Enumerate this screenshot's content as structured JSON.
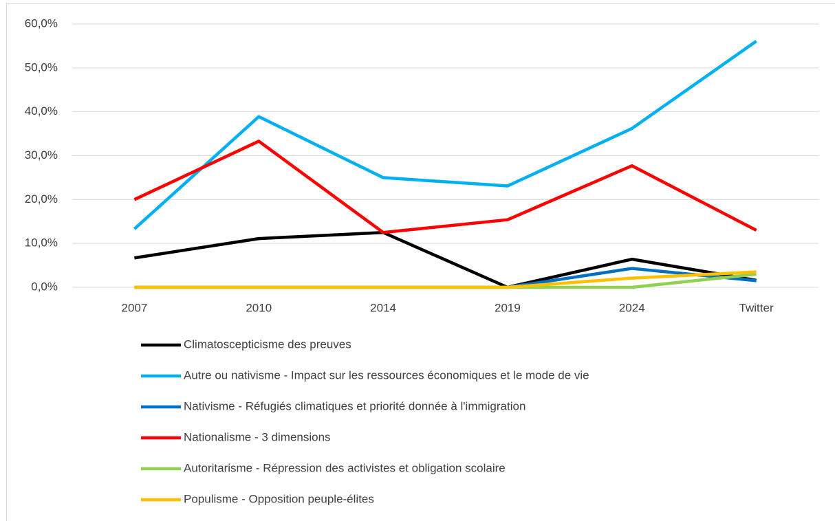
{
  "chart_data": {
    "type": "line",
    "categories": [
      "2007",
      "2010",
      "2014",
      "2019",
      "2024",
      "Twitter"
    ],
    "series": [
      {
        "name": "Climatoscepticisme des preuves",
        "color": "#000000",
        "values": [
          6.7,
          11.1,
          12.5,
          0,
          6.4,
          1.6
        ]
      },
      {
        "name": "Autre ou nativisme - Impact sur les ressources économiques et le mode de vie",
        "color": "#00b0f0",
        "values": [
          13.3,
          38.9,
          25.0,
          23.1,
          36.2,
          56.1
        ]
      },
      {
        "name": "Nativisme - Réfugiés climatiques et priorité donnée à l'immigration",
        "color": "#0070c0",
        "values": [
          0,
          0,
          0,
          0,
          4.3,
          1.5
        ]
      },
      {
        "name": "Nationalisme - 3 dimensions",
        "color": "#ff0000",
        "values": [
          20.0,
          33.3,
          12.5,
          15.4,
          27.7,
          13.0
        ]
      },
      {
        "name": "Autoritarisme - Répression des activistes et obligation scolaire",
        "color": "#92d050",
        "values": [
          0,
          0,
          0,
          0,
          0,
          3.0
        ]
      },
      {
        "name": "Populisme - Opposition peuple-élites",
        "color": "#ffc000",
        "values": [
          0,
          0,
          0,
          0,
          2.1,
          3.5
        ]
      }
    ],
    "ylim": [
      0,
      60
    ],
    "yticks": [
      {
        "value": 0,
        "label": "0,0%"
      },
      {
        "value": 10,
        "label": "10,0%"
      },
      {
        "value": 20,
        "label": "20,0%"
      },
      {
        "value": 30,
        "label": "30,0%"
      },
      {
        "value": 40,
        "label": "40,0%"
      },
      {
        "value": 50,
        "label": "50,0%"
      },
      {
        "value": 60,
        "label": "60,0%"
      }
    ],
    "grid": true,
    "legend": "bottom"
  }
}
